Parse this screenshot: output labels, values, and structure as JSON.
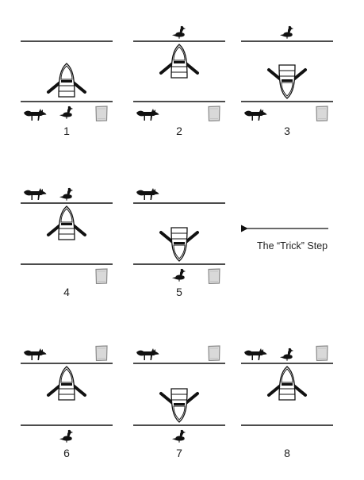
{
  "panels": [
    {
      "label": "1",
      "boat": "bottom",
      "boat_cargo": "none",
      "top_bank": [],
      "bottom_bank": [
        "fox",
        "goose",
        "beans"
      ]
    },
    {
      "label": "2",
      "boat": "top",
      "boat_cargo": "none",
      "top_bank": [
        "goose"
      ],
      "bottom_bank": [
        "fox",
        "beans"
      ]
    },
    {
      "label": "3",
      "boat": "bottom",
      "boat_cargo": "none",
      "top_bank": [
        "goose"
      ],
      "bottom_bank": [
        "fox",
        "beans"
      ]
    },
    {
      "label": "4",
      "boat": "top",
      "boat_cargo": "none",
      "top_bank": [
        "fox",
        "goose"
      ],
      "bottom_bank": [
        "beans"
      ]
    },
    {
      "label": "5",
      "boat": "bottom",
      "boat_cargo": "none",
      "top_bank": [
        "fox"
      ],
      "bottom_bank": [
        "goose",
        "beans"
      ]
    },
    {
      "label": "6",
      "boat": "top",
      "boat_cargo": "none",
      "top_bank": [
        "fox",
        "beans"
      ],
      "bottom_bank": [
        "goose"
      ]
    },
    {
      "label": "7",
      "boat": "bottom",
      "boat_cargo": "none",
      "top_bank": [
        "fox",
        "beans"
      ],
      "bottom_bank": [
        "goose"
      ]
    },
    {
      "label": "8",
      "boat": "top",
      "boat_cargo": "none",
      "top_bank": [
        "fox",
        "goose",
        "beans"
      ],
      "bottom_bank": []
    }
  ],
  "annotation": {
    "text": "The “Trick” Step",
    "arrow_icon": "left-arrow-icon",
    "points_to_panel": "5"
  },
  "icons": {
    "fox": "fox-icon",
    "goose": "goose-icon",
    "beans": "bean-bag-icon",
    "boat": "rowboat-icon"
  },
  "colors": {
    "ink": "#111111",
    "sack_fill": "#d9d9d9",
    "sack_stroke": "#8a8a8a"
  }
}
